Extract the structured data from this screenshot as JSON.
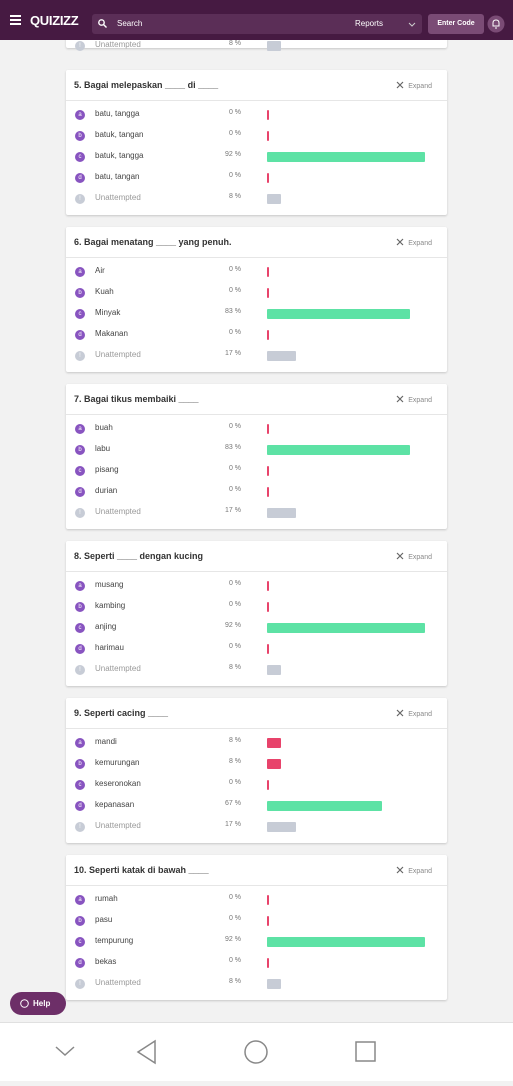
{
  "header": {
    "brand": "QUIZIZZ",
    "search": "Search",
    "reports": "Reports",
    "enter_code": "Enter Code"
  },
  "previous": {
    "letter": "!",
    "text": "Unattempted",
    "value": 8,
    "label": "8 %",
    "color": "#c7ccd6"
  },
  "expand": "Expand",
  "questions": [
    {
      "title": "5. Bagai melepaskan ____ di ____",
      "options": [
        {
          "letter": "a",
          "text": "batu, tangga",
          "value": 0,
          "label": "0 %",
          "color": "#e8436b"
        },
        {
          "letter": "b",
          "text": "batuk, tangan",
          "value": 0,
          "label": "0 %",
          "color": "#e8436b"
        },
        {
          "letter": "c",
          "text": "batuk, tangga",
          "value": 92,
          "label": "92 %",
          "color": "#5de2a5"
        },
        {
          "letter": "d",
          "text": "batu, tangan",
          "value": 0,
          "label": "0 %",
          "color": "#e8436b"
        },
        {
          "letter": "!",
          "text": "Unattempted",
          "value": 8,
          "label": "8 %",
          "color": "#c7ccd6"
        }
      ]
    },
    {
      "title": "6. Bagai menatang ____ yang penuh.",
      "options": [
        {
          "letter": "a",
          "text": "Air",
          "value": 0,
          "label": "0 %",
          "color": "#e8436b"
        },
        {
          "letter": "b",
          "text": "Kuah",
          "value": 0,
          "label": "0 %",
          "color": "#e8436b"
        },
        {
          "letter": "c",
          "text": "Minyak",
          "value": 83,
          "label": "83 %",
          "color": "#5de2a5"
        },
        {
          "letter": "d",
          "text": "Makanan",
          "value": 0,
          "label": "0 %",
          "color": "#e8436b"
        },
        {
          "letter": "!",
          "text": "Unattempted",
          "value": 17,
          "label": "17 %",
          "color": "#c7ccd6"
        }
      ]
    },
    {
      "title": "7. Bagai tikus membaiki ____",
      "options": [
        {
          "letter": "a",
          "text": "buah",
          "value": 0,
          "label": "0 %",
          "color": "#e8436b"
        },
        {
          "letter": "b",
          "text": "labu",
          "value": 83,
          "label": "83 %",
          "color": "#5de2a5"
        },
        {
          "letter": "c",
          "text": "pisang",
          "value": 0,
          "label": "0 %",
          "color": "#e8436b"
        },
        {
          "letter": "d",
          "text": "durian",
          "value": 0,
          "label": "0 %",
          "color": "#e8436b"
        },
        {
          "letter": "!",
          "text": "Unattempted",
          "value": 17,
          "label": "17 %",
          "color": "#c7ccd6"
        }
      ]
    },
    {
      "title": "8. Seperti ____ dengan kucing",
      "options": [
        {
          "letter": "a",
          "text": "musang",
          "value": 0,
          "label": "0 %",
          "color": "#e8436b"
        },
        {
          "letter": "b",
          "text": "kambing",
          "value": 0,
          "label": "0 %",
          "color": "#e8436b"
        },
        {
          "letter": "c",
          "text": "anjing",
          "value": 92,
          "label": "92 %",
          "color": "#5de2a5"
        },
        {
          "letter": "d",
          "text": "harimau",
          "value": 0,
          "label": "0 %",
          "color": "#e8436b"
        },
        {
          "letter": "!",
          "text": "Unattempted",
          "value": 8,
          "label": "8 %",
          "color": "#c7ccd6"
        }
      ]
    },
    {
      "title": "9. Seperti cacing ____",
      "options": [
        {
          "letter": "a",
          "text": "mandi",
          "value": 8,
          "label": "8 %",
          "color": "#e8436b"
        },
        {
          "letter": "b",
          "text": "kemurungan",
          "value": 8,
          "label": "8 %",
          "color": "#e8436b"
        },
        {
          "letter": "c",
          "text": "keseronokan",
          "value": 0,
          "label": "0 %",
          "color": "#e8436b"
        },
        {
          "letter": "d",
          "text": "kepanasan",
          "value": 67,
          "label": "67 %",
          "color": "#5de2a5"
        },
        {
          "letter": "!",
          "text": "Unattempted",
          "value": 17,
          "label": "17 %",
          "color": "#c7ccd6"
        }
      ]
    },
    {
      "title": "10. Seperti katak di bawah ____",
      "options": [
        {
          "letter": "a",
          "text": "rumah",
          "value": 0,
          "label": "0 %",
          "color": "#e8436b"
        },
        {
          "letter": "b",
          "text": "pasu",
          "value": 0,
          "label": "0 %",
          "color": "#e8436b"
        },
        {
          "letter": "c",
          "text": "tempurung",
          "value": 92,
          "label": "92 %",
          "color": "#5de2a5"
        },
        {
          "letter": "d",
          "text": "bekas",
          "value": 0,
          "label": "0 %",
          "color": "#e8436b"
        },
        {
          "letter": "!",
          "text": "Unattempted",
          "value": 8,
          "label": "8 %",
          "color": "#c7ccd6"
        }
      ]
    }
  ],
  "help": "Help"
}
